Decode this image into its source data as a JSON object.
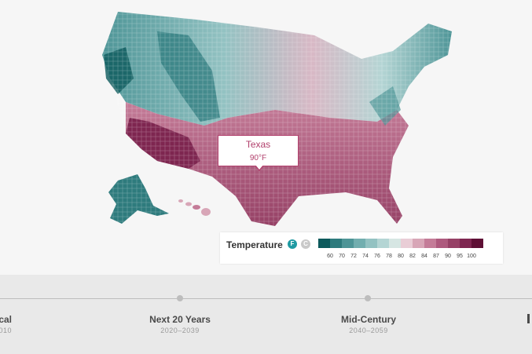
{
  "tooltip": {
    "state": "Texas",
    "temperature": "90°F"
  },
  "legend": {
    "title": "Temperature",
    "unit_f": "F",
    "unit_c": "C",
    "colors": [
      "#0d5a5c",
      "#2e7b7d",
      "#4e9597",
      "#72aeaf",
      "#93c2c2",
      "#b4d5d4",
      "#d6e6e3",
      "#e9cdd6",
      "#d8a6b7",
      "#c47c98",
      "#ae5a7e",
      "#964166",
      "#7e2650",
      "#5e0f35"
    ],
    "ticks": [
      "60",
      "70",
      "72",
      "74",
      "76",
      "78",
      "80",
      "82",
      "84",
      "87",
      "90",
      "95",
      "100"
    ]
  },
  "timeline": {
    "items": [
      {
        "label": "cal",
        "years": "010"
      },
      {
        "label": "Next 20 Years",
        "years": "2020–2039"
      },
      {
        "label": "Mid-Century",
        "years": "2040–2059"
      }
    ]
  }
}
